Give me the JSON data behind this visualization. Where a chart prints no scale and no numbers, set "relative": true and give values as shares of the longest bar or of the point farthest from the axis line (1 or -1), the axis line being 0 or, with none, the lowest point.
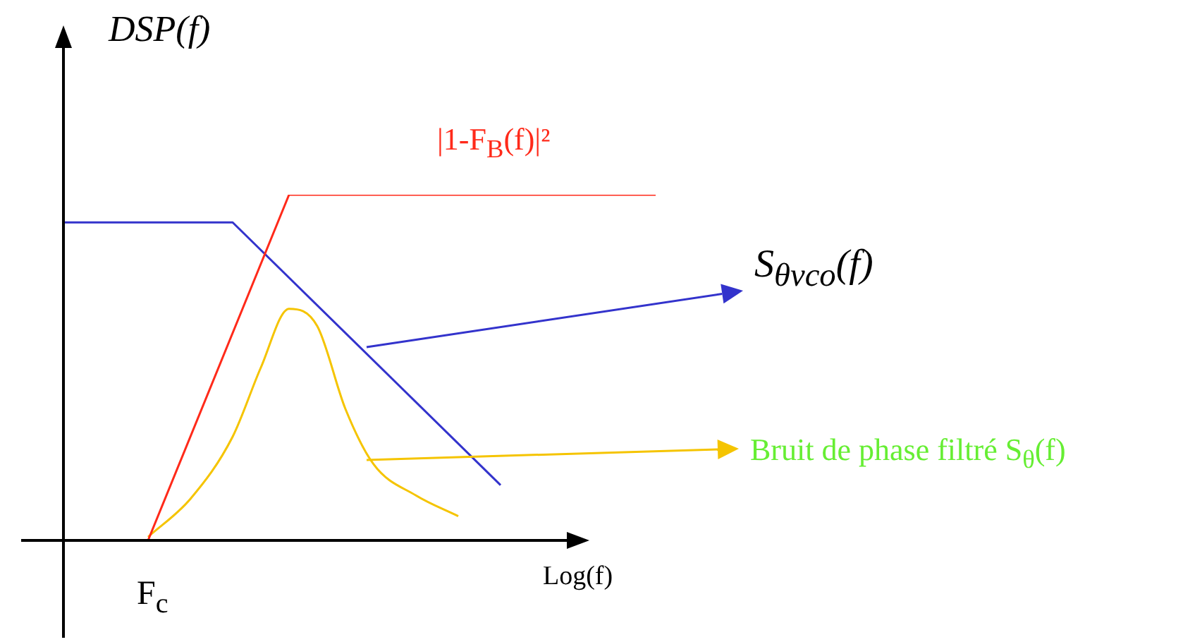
{
  "chart_data": {
    "type": "line",
    "relative": true,
    "ylabel": "DSP(f)",
    "xlabel": "Log(f)",
    "categories": [
      null,
      null,
      null,
      null,
      null,
      null,
      null,
      null,
      null,
      null,
      null,
      null,
      null,
      null,
      null,
      null,
      null,
      null,
      null,
      null,
      null,
      null,
      null,
      null,
      null,
      null,
      null,
      null,
      null,
      null,
      null,
      null,
      null,
      null,
      null,
      null,
      null,
      null,
      null,
      null,
      null,
      null,
      null
    ],
    "series": [
      {
        "name": "|1-F$_{B}$(f)|²",
        "color": "#ff2a1a",
        "values": [
          null,
          null,
          null,
          null,
          null,
          null,
          0,
          null,
          null,
          null,
          null,
          null,
          null,
          null,
          null,
          null,
          1,
          null,
          null,
          null,
          null,
          null,
          null,
          null,
          null,
          null,
          null,
          null,
          null,
          null,
          null,
          null,
          null,
          null,
          null,
          null,
          null,
          null,
          null,
          null,
          null,
          null,
          1
        ]
      },
      {
        "name": "S$_{θvco}$(f)",
        "color": "#3333cc",
        "values": [
          0.92,
          null,
          null,
          null,
          null,
          null,
          null,
          null,
          null,
          null,
          null,
          null,
          0.92,
          null,
          null,
          null,
          null,
          null,
          null,
          null,
          null,
          null,
          null,
          null,
          null,
          null,
          null,
          null,
          null,
          null,
          null,
          0.16,
          null,
          null,
          null,
          null,
          null,
          null,
          null,
          null,
          null,
          null,
          null
        ]
      },
      {
        "name": "Bruit de phase filtré S$_{θ}$(f)",
        "color": "#f5c400",
        "values": [
          null,
          null,
          null,
          null,
          null,
          null,
          0.01,
          null,
          null,
          0.12,
          null,
          null,
          0.3,
          null,
          0.5,
          null,
          0.67,
          null,
          0.62,
          null,
          0.38,
          null,
          0.22,
          null,
          null,
          0.13,
          null,
          null,
          0.07,
          null,
          null,
          null,
          null,
          null,
          null,
          null,
          null,
          null,
          null,
          null,
          null,
          null,
          null
        ]
      }
    ],
    "annotations": [
      "F$_{c}$"
    ],
    "legend": "right"
  }
}
